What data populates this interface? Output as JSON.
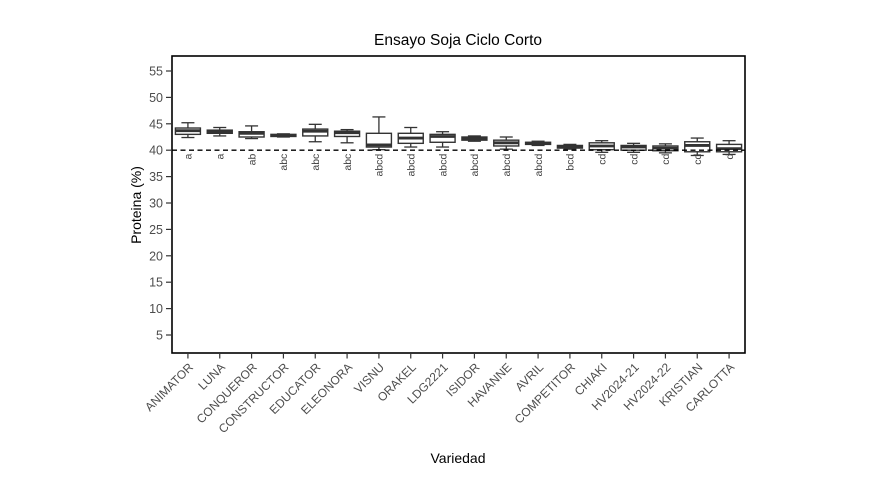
{
  "chart": {
    "title": "Ensayo Soja Ciclo Corto",
    "xlabel": "Variedad",
    "ylabel": "Proteina (%)"
  },
  "chart_data": {
    "type": "boxplot",
    "title": "Ensayo Soja Ciclo Corto",
    "xlabel": "Variedad",
    "ylabel": "Proteina (%)",
    "y_ticks": [
      5,
      10,
      15,
      20,
      25,
      30,
      35,
      40,
      45,
      50,
      55
    ],
    "ylim": [
      2,
      58
    ],
    "grid": false,
    "legend": "none",
    "reference_line": {
      "y": 40,
      "style": "dashed",
      "color": "#000000"
    },
    "colors": {
      "box_stroke": "#333333",
      "box_fill": "#ffffff",
      "median": "#333333",
      "axis_text": "#4d4d4d",
      "panel_border": "#000000"
    },
    "boxes": [
      {
        "variety": "ANIMATOR",
        "group_letter": "a",
        "whisker_low": 42.4,
        "q1": 43.0,
        "median": 43.7,
        "q3": 44.2,
        "whisker_high": 45.2
      },
      {
        "variety": "LUNA",
        "group_letter": "a",
        "whisker_low": 42.7,
        "q1": 43.2,
        "median": 43.5,
        "q3": 43.8,
        "whisker_high": 44.3
      },
      {
        "variety": "CONQUEROR",
        "group_letter": "ab",
        "whisker_low": 42.2,
        "q1": 42.5,
        "median": 43.2,
        "q3": 43.5,
        "whisker_high": 44.6
      },
      {
        "variety": "CONSTRUCTOR",
        "group_letter": "abc",
        "whisker_low": 42.5,
        "q1": 42.6,
        "median": 42.8,
        "q3": 43.0,
        "whisker_high": 43.1
      },
      {
        "variety": "EDUCATOR",
        "group_letter": "abc",
        "whisker_low": 41.6,
        "q1": 42.7,
        "median": 43.6,
        "q3": 44.0,
        "whisker_high": 44.9
      },
      {
        "variety": "ELEONORA",
        "group_letter": "abc",
        "whisker_low": 41.4,
        "q1": 42.6,
        "median": 43.3,
        "q3": 43.6,
        "whisker_high": 43.9
      },
      {
        "variety": "VISNU",
        "group_letter": "abcd",
        "whisker_low": 40.1,
        "q1": 40.6,
        "median": 41.0,
        "q3": 43.2,
        "whisker_high": 46.3
      },
      {
        "variety": "ORAKEL",
        "group_letter": "abcd",
        "whisker_low": 40.6,
        "q1": 41.3,
        "median": 42.3,
        "q3": 43.2,
        "whisker_high": 44.3
      },
      {
        "variety": "LDG2221",
        "group_letter": "abcd",
        "whisker_low": 40.6,
        "q1": 41.5,
        "median": 42.6,
        "q3": 43.0,
        "whisker_high": 43.5
      },
      {
        "variety": "ISIDOR",
        "group_letter": "abcd",
        "whisker_low": 41.7,
        "q1": 41.9,
        "median": 42.2,
        "q3": 42.5,
        "whisker_high": 42.7
      },
      {
        "variety": "HAVANNE",
        "group_letter": "abcd",
        "whisker_low": 40.2,
        "q1": 40.8,
        "median": 41.4,
        "q3": 41.9,
        "whisker_high": 42.5
      },
      {
        "variety": "AVRIL",
        "group_letter": "abcd",
        "whisker_low": 40.9,
        "q1": 41.1,
        "median": 41.3,
        "q3": 41.5,
        "whisker_high": 41.7
      },
      {
        "variety": "COMPETITOR",
        "group_letter": "bcd",
        "whisker_low": 40.2,
        "q1": 40.4,
        "median": 40.6,
        "q3": 40.9,
        "whisker_high": 41.1
      },
      {
        "variety": "CHIAKI",
        "group_letter": "cd",
        "whisker_low": 39.6,
        "q1": 40.1,
        "median": 40.8,
        "q3": 41.4,
        "whisker_high": 41.8
      },
      {
        "variety": "HV2024-21",
        "group_letter": "cd",
        "whisker_low": 39.6,
        "q1": 40.0,
        "median": 40.6,
        "q3": 40.9,
        "whisker_high": 41.3
      },
      {
        "variety": "HV2024-22",
        "group_letter": "cd",
        "whisker_low": 39.5,
        "q1": 39.9,
        "median": 40.4,
        "q3": 40.8,
        "whisker_high": 41.2
      },
      {
        "variety": "KRISTIAN",
        "group_letter": "cd",
        "whisker_low": 39.0,
        "q1": 39.7,
        "median": 40.9,
        "q3": 41.6,
        "whisker_high": 42.3
      },
      {
        "variety": "CARLOTTA",
        "group_letter": "d",
        "whisker_low": 39.2,
        "q1": 39.7,
        "median": 40.3,
        "q3": 41.1,
        "whisker_high": 41.8
      }
    ]
  }
}
